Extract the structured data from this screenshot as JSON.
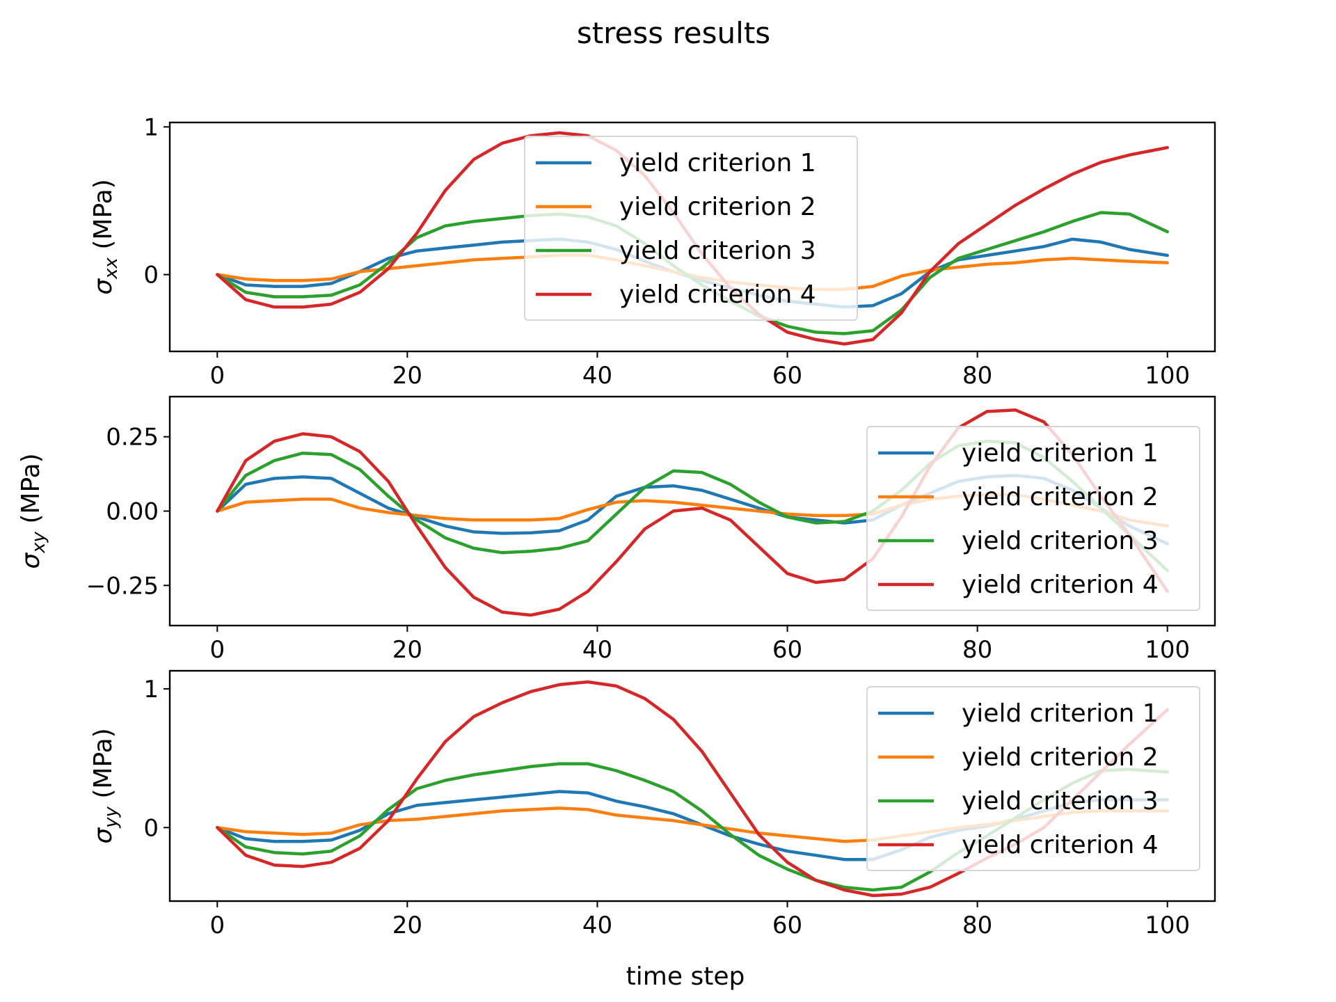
{
  "title": "stress results",
  "xlabel": "time step",
  "colors": {
    "c1": "#1f77b4",
    "c2": "#ff7f0e",
    "c3": "#2ca02c",
    "c4": "#d62728"
  },
  "chart_data": [
    {
      "type": "line",
      "ylabel_sym": "σ",
      "ylabel_sub": "xx",
      "ylabel_unit": "(MPa)",
      "xlim": [
        -5,
        105
      ],
      "ylim": [
        -0.52,
        1.03
      ],
      "xticks": [
        0,
        20,
        40,
        60,
        80,
        100
      ],
      "yticks": [
        0,
        1
      ],
      "ytick_labels": [
        "0",
        "1"
      ],
      "x": [
        0,
        3,
        6,
        9,
        12,
        15,
        18,
        21,
        24,
        27,
        30,
        33,
        36,
        39,
        42,
        45,
        48,
        51,
        54,
        57,
        60,
        63,
        66,
        69,
        72,
        75,
        78,
        81,
        84,
        87,
        90,
        93,
        96,
        100
      ],
      "legend": "upper-center",
      "series": [
        {
          "name": "yield criterion 1",
          "values": [
            0,
            -0.07,
            -0.08,
            -0.08,
            -0.06,
            0.02,
            0.11,
            0.16,
            0.18,
            0.2,
            0.22,
            0.23,
            0.24,
            0.22,
            0.17,
            0.09,
            0.02,
            -0.04,
            -0.09,
            -0.14,
            -0.18,
            -0.2,
            -0.22,
            -0.21,
            -0.13,
            0.02,
            0.1,
            0.13,
            0.16,
            0.19,
            0.24,
            0.22,
            0.17,
            0.13
          ]
        },
        {
          "name": "yield criterion 2",
          "values": [
            0,
            -0.03,
            -0.04,
            -0.04,
            -0.03,
            0.02,
            0.04,
            0.06,
            0.08,
            0.1,
            0.11,
            0.12,
            0.13,
            0.13,
            0.1,
            0.06,
            0.02,
            -0.02,
            -0.05,
            -0.07,
            -0.09,
            -0.1,
            -0.1,
            -0.08,
            -0.01,
            0.03,
            0.05,
            0.07,
            0.08,
            0.1,
            0.11,
            0.1,
            0.09,
            0.08
          ]
        },
        {
          "name": "yield criterion 3",
          "values": [
            0,
            -0.12,
            -0.15,
            -0.15,
            -0.14,
            -0.07,
            0.08,
            0.25,
            0.33,
            0.36,
            0.38,
            0.4,
            0.41,
            0.39,
            0.33,
            0.21,
            0.06,
            -0.07,
            -0.18,
            -0.28,
            -0.35,
            -0.39,
            -0.4,
            -0.38,
            -0.24,
            -0.02,
            0.11,
            0.17,
            0.23,
            0.29,
            0.36,
            0.42,
            0.41,
            0.29
          ]
        },
        {
          "name": "yield criterion 4",
          "values": [
            0,
            -0.17,
            -0.22,
            -0.22,
            -0.2,
            -0.12,
            0.04,
            0.28,
            0.57,
            0.78,
            0.89,
            0.94,
            0.96,
            0.94,
            0.84,
            0.67,
            0.42,
            0.14,
            -0.09,
            -0.27,
            -0.39,
            -0.44,
            -0.47,
            -0.44,
            -0.26,
            0.02,
            0.21,
            0.34,
            0.47,
            0.58,
            0.68,
            0.76,
            0.81,
            0.86
          ]
        }
      ]
    },
    {
      "type": "line",
      "ylabel_sym": "σ",
      "ylabel_sub": "xy",
      "ylabel_unit": "(MPa)",
      "xlim": [
        -5,
        105
      ],
      "ylim": [
        -0.385,
        0.385
      ],
      "xticks": [
        0,
        20,
        40,
        60,
        80,
        100
      ],
      "yticks": [
        0.25,
        0,
        -0.25
      ],
      "ytick_labels": [
        "0.25",
        "0.00",
        "−0.25"
      ],
      "x": [
        0,
        3,
        6,
        9,
        12,
        15,
        18,
        21,
        24,
        27,
        30,
        33,
        36,
        39,
        42,
        45,
        48,
        51,
        54,
        57,
        60,
        63,
        66,
        69,
        72,
        75,
        78,
        81,
        84,
        87,
        90,
        93,
        96,
        100
      ],
      "legend": "right",
      "series": [
        {
          "name": "yield criterion 1",
          "values": [
            0,
            0.09,
            0.11,
            0.115,
            0.11,
            0.06,
            0.01,
            -0.02,
            -0.05,
            -0.07,
            -0.075,
            -0.073,
            -0.066,
            -0.03,
            0.05,
            0.08,
            0.085,
            0.07,
            0.04,
            0.01,
            -0.02,
            -0.03,
            -0.04,
            -0.03,
            0.02,
            0.06,
            0.1,
            0.115,
            0.12,
            0.11,
            0.07,
            0.01,
            -0.05,
            -0.11
          ]
        },
        {
          "name": "yield criterion 2",
          "values": [
            0,
            0.03,
            0.035,
            0.04,
            0.04,
            0.01,
            -0.005,
            -0.015,
            -0.025,
            -0.03,
            -0.03,
            -0.03,
            -0.025,
            0.005,
            0.03,
            0.035,
            0.03,
            0.02,
            0.01,
            0.0,
            -0.01,
            -0.015,
            -0.015,
            -0.01,
            0.02,
            0.04,
            0.05,
            0.055,
            0.055,
            0.04,
            0.02,
            0.0,
            -0.03,
            -0.05
          ]
        },
        {
          "name": "yield criterion 3",
          "values": [
            0,
            0.12,
            0.17,
            0.195,
            0.19,
            0.14,
            0.05,
            -0.03,
            -0.09,
            -0.125,
            -0.14,
            -0.135,
            -0.125,
            -0.1,
            -0.01,
            0.08,
            0.135,
            0.13,
            0.09,
            0.03,
            -0.02,
            -0.04,
            -0.035,
            0.0,
            0.07,
            0.16,
            0.22,
            0.235,
            0.23,
            0.18,
            0.1,
            0.01,
            -0.08,
            -0.2
          ]
        },
        {
          "name": "yield criterion 4",
          "values": [
            0,
            0.17,
            0.235,
            0.26,
            0.25,
            0.2,
            0.1,
            -0.05,
            -0.19,
            -0.29,
            -0.34,
            -0.35,
            -0.33,
            -0.27,
            -0.17,
            -0.06,
            0.0,
            0.01,
            -0.03,
            -0.12,
            -0.21,
            -0.24,
            -0.23,
            -0.16,
            -0.02,
            0.15,
            0.28,
            0.335,
            0.34,
            0.3,
            0.19,
            0.05,
            -0.08,
            -0.27
          ]
        }
      ]
    },
    {
      "type": "line",
      "ylabel_sym": "σ",
      "ylabel_sub": "yy",
      "ylabel_unit": "(MPa)",
      "xlim": [
        -5,
        105
      ],
      "ylim": [
        -0.53,
        1.13
      ],
      "xticks": [
        0,
        20,
        40,
        60,
        80,
        100
      ],
      "yticks": [
        0,
        1
      ],
      "ytick_labels": [
        "0",
        "1"
      ],
      "x": [
        0,
        3,
        6,
        9,
        12,
        15,
        18,
        21,
        24,
        27,
        30,
        33,
        36,
        39,
        42,
        45,
        48,
        51,
        54,
        57,
        60,
        63,
        66,
        69,
        72,
        75,
        78,
        81,
        84,
        87,
        90,
        93,
        96,
        100
      ],
      "legend": "right",
      "series": [
        {
          "name": "yield criterion 1",
          "values": [
            0,
            -0.08,
            -0.1,
            -0.1,
            -0.09,
            -0.02,
            0.1,
            0.16,
            0.18,
            0.2,
            0.22,
            0.24,
            0.26,
            0.25,
            0.19,
            0.15,
            0.1,
            0.02,
            -0.06,
            -0.12,
            -0.17,
            -0.2,
            -0.23,
            -0.23,
            -0.16,
            -0.07,
            -0.02,
            0.01,
            0.06,
            0.12,
            0.18,
            0.2,
            0.2,
            0.2
          ]
        },
        {
          "name": "yield criterion 2",
          "values": [
            0,
            -0.03,
            -0.04,
            -0.05,
            -0.04,
            0.02,
            0.05,
            0.06,
            0.08,
            0.1,
            0.12,
            0.13,
            0.14,
            0.13,
            0.09,
            0.07,
            0.05,
            0.02,
            -0.01,
            -0.04,
            -0.06,
            -0.08,
            -0.1,
            -0.09,
            -0.06,
            -0.03,
            0.0,
            0.02,
            0.05,
            0.08,
            0.11,
            0.12,
            0.12,
            0.12
          ]
        },
        {
          "name": "yield criterion 3",
          "values": [
            0,
            -0.14,
            -0.18,
            -0.19,
            -0.17,
            -0.06,
            0.13,
            0.28,
            0.34,
            0.38,
            0.41,
            0.44,
            0.46,
            0.46,
            0.41,
            0.34,
            0.26,
            0.12,
            -0.05,
            -0.2,
            -0.3,
            -0.38,
            -0.43,
            -0.45,
            -0.43,
            -0.32,
            -0.18,
            -0.06,
            0.07,
            0.2,
            0.32,
            0.41,
            0.42,
            0.4
          ]
        },
        {
          "name": "yield criterion 4",
          "values": [
            0,
            -0.2,
            -0.27,
            -0.28,
            -0.25,
            -0.15,
            0.05,
            0.35,
            0.62,
            0.8,
            0.9,
            0.98,
            1.03,
            1.05,
            1.02,
            0.93,
            0.78,
            0.55,
            0.25,
            -0.05,
            -0.25,
            -0.38,
            -0.45,
            -0.49,
            -0.48,
            -0.43,
            -0.33,
            -0.22,
            -0.12,
            0.0,
            0.2,
            0.4,
            0.6,
            0.85
          ]
        }
      ]
    }
  ]
}
